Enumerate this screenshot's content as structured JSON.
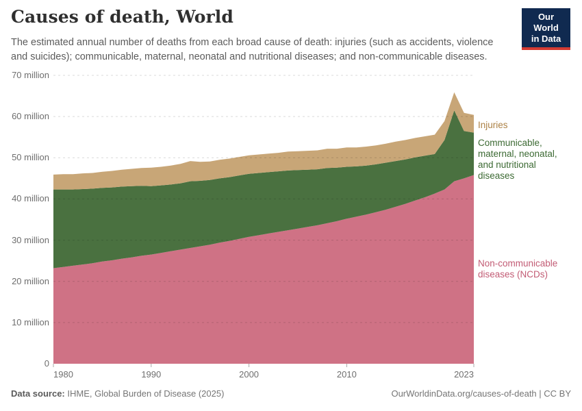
{
  "header": {
    "title": "Causes of death, World",
    "subtitle": "The estimated annual number of deaths from each broad cause of death: injuries (such as accidents, violence and suicides); communicable, maternal, neonatal and nutritional diseases; and non-communicable diseases.",
    "logo": {
      "line1": "Our World",
      "line2": "in Data"
    }
  },
  "footer": {
    "source_prefix": "Data source:",
    "source_text": " IHME, Global Burden of Disease (2025)",
    "link_text": "OurWorldinData.org/causes-of-death | CC BY"
  },
  "colors": {
    "logo_navy": "#102a50",
    "logo_red": "#d43b32",
    "axis_text": "#6e6e6e",
    "gridline": "rgba(0,0,0,0.15)",
    "tick": "#a8a8a8"
  },
  "chart_data": {
    "type": "area",
    "stacked": true,
    "title": "Causes of death, World",
    "xlabel": "",
    "ylabel": "Deaths",
    "unit": "million",
    "grid": true,
    "legend_position": "right",
    "ylim": [
      0,
      70
    ],
    "x": [
      1980,
      1981,
      1982,
      1983,
      1984,
      1985,
      1986,
      1987,
      1988,
      1989,
      1990,
      1991,
      1992,
      1993,
      1994,
      1995,
      1996,
      1997,
      1998,
      1999,
      2000,
      2001,
      2002,
      2003,
      2004,
      2005,
      2006,
      2007,
      2008,
      2009,
      2010,
      2011,
      2012,
      2013,
      2014,
      2015,
      2016,
      2017,
      2018,
      2019,
      2020,
      2021,
      2022,
      2023
    ],
    "series": [
      {
        "id": "ncd",
        "name": "Non-communicable diseases (NCDs)",
        "legend": "Non-communicable\ndiseases (NCDs)",
        "color": "#cf7285",
        "label_color": "#c25b74",
        "values": [
          23.2,
          23.5,
          23.8,
          24.1,
          24.4,
          24.8,
          25.1,
          25.5,
          25.8,
          26.2,
          26.5,
          26.9,
          27.3,
          27.7,
          28.1,
          28.5,
          28.9,
          29.4,
          29.8,
          30.3,
          30.8,
          31.2,
          31.6,
          32.0,
          32.4,
          32.8,
          33.2,
          33.6,
          34.1,
          34.6,
          35.2,
          35.7,
          36.2,
          36.8,
          37.4,
          38.1,
          38.8,
          39.6,
          40.4,
          41.3,
          42.3,
          44.3,
          45.0,
          45.8
        ]
      },
      {
        "id": "cmnn",
        "name": "Communicable, maternal, neonatal, and nutritional diseases",
        "legend": "Communicable,\nmaternal, neonatal,\nand nutritional\ndiseases",
        "color": "#4a7140",
        "label_color": "#3c6a33",
        "values": [
          19.1,
          18.8,
          18.5,
          18.3,
          18.1,
          17.9,
          17.7,
          17.5,
          17.3,
          17.0,
          16.6,
          16.4,
          16.2,
          16.1,
          16.2,
          15.9,
          15.7,
          15.6,
          15.5,
          15.4,
          15.3,
          15.1,
          14.9,
          14.7,
          14.5,
          14.2,
          13.9,
          13.6,
          13.4,
          13.0,
          12.6,
          12.2,
          11.9,
          11.6,
          11.4,
          11.1,
          10.8,
          10.5,
          10.1,
          9.6,
          12.0,
          17.2,
          11.5,
          10.3
        ]
      },
      {
        "id": "injuries",
        "name": "Injuries",
        "legend": "Injuries",
        "color": "#c8a677",
        "label_color": "#ac8145",
        "values": [
          3.6,
          3.7,
          3.7,
          3.8,
          3.8,
          3.9,
          4.0,
          4.1,
          4.2,
          4.3,
          4.5,
          4.5,
          4.6,
          4.7,
          4.9,
          4.6,
          4.5,
          4.5,
          4.5,
          4.5,
          4.5,
          4.5,
          4.5,
          4.5,
          4.6,
          4.6,
          4.6,
          4.6,
          4.7,
          4.6,
          4.7,
          4.6,
          4.6,
          4.6,
          4.6,
          4.7,
          4.7,
          4.7,
          4.7,
          4.7,
          4.6,
          4.4,
          4.4,
          4.3
        ]
      }
    ],
    "yticks": [
      {
        "value": 0,
        "label": "0"
      },
      {
        "value": 10,
        "label": "10 million"
      },
      {
        "value": 20,
        "label": "20 million"
      },
      {
        "value": 30,
        "label": "30 million"
      },
      {
        "value": 40,
        "label": "40 million"
      },
      {
        "value": 50,
        "label": "50 million"
      },
      {
        "value": 60,
        "label": "60 million"
      },
      {
        "value": 70,
        "label": "70 million"
      }
    ],
    "xticks": [
      1980,
      1990,
      2000,
      2010,
      2023
    ]
  }
}
